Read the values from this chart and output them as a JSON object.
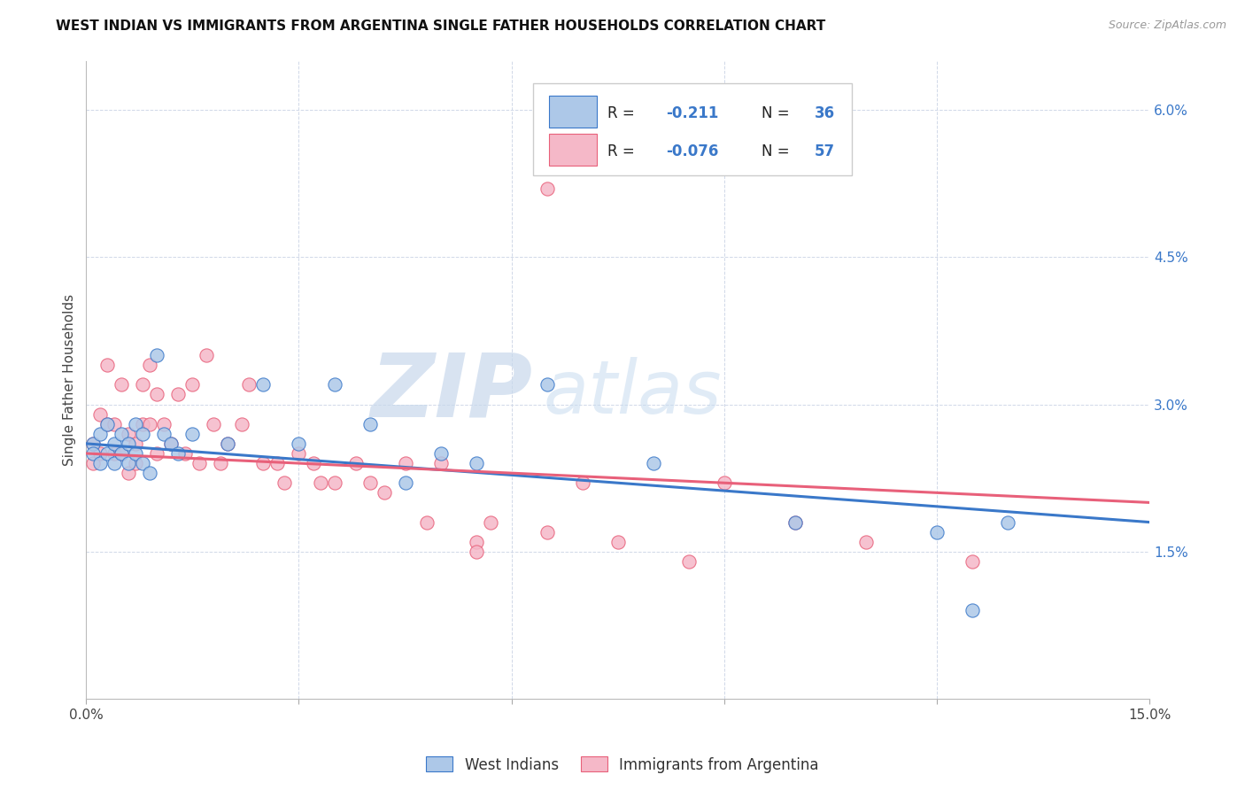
{
  "title": "WEST INDIAN VS IMMIGRANTS FROM ARGENTINA SINGLE FATHER HOUSEHOLDS CORRELATION CHART",
  "source": "Source: ZipAtlas.com",
  "ylabel": "Single Father Households",
  "xmin": 0.0,
  "xmax": 0.15,
  "ymin": 0.0,
  "ymax": 0.065,
  "yticks": [
    0.015,
    0.03,
    0.045,
    0.06
  ],
  "ytick_labels": [
    "1.5%",
    "3.0%",
    "4.5%",
    "6.0%"
  ],
  "xticks": [
    0.0,
    0.03,
    0.06,
    0.09,
    0.12,
    0.15
  ],
  "color_blue": "#adc8e8",
  "color_pink": "#f5b8c8",
  "line_color_blue": "#3a78c9",
  "line_color_pink": "#e8607a",
  "watermark_zip": "ZIP",
  "watermark_atlas": "atlas",
  "grid_color": "#d0d8e8",
  "west_indian_x": [
    0.001,
    0.001,
    0.002,
    0.002,
    0.003,
    0.003,
    0.004,
    0.004,
    0.005,
    0.005,
    0.006,
    0.006,
    0.007,
    0.007,
    0.008,
    0.008,
    0.009,
    0.01,
    0.011,
    0.012,
    0.013,
    0.015,
    0.02,
    0.025,
    0.03,
    0.035,
    0.04,
    0.045,
    0.05,
    0.055,
    0.065,
    0.08,
    0.1,
    0.12,
    0.125,
    0.13
  ],
  "west_indian_y": [
    0.026,
    0.025,
    0.027,
    0.024,
    0.028,
    0.025,
    0.026,
    0.024,
    0.027,
    0.025,
    0.026,
    0.024,
    0.028,
    0.025,
    0.027,
    0.024,
    0.023,
    0.035,
    0.027,
    0.026,
    0.025,
    0.027,
    0.026,
    0.032,
    0.026,
    0.032,
    0.028,
    0.022,
    0.025,
    0.024,
    0.032,
    0.024,
    0.018,
    0.017,
    0.009,
    0.018
  ],
  "argentina_x": [
    0.001,
    0.001,
    0.002,
    0.002,
    0.003,
    0.003,
    0.004,
    0.004,
    0.005,
    0.005,
    0.006,
    0.006,
    0.007,
    0.007,
    0.008,
    0.008,
    0.009,
    0.009,
    0.01,
    0.01,
    0.011,
    0.012,
    0.013,
    0.014,
    0.015,
    0.016,
    0.017,
    0.018,
    0.019,
    0.02,
    0.022,
    0.023,
    0.025,
    0.027,
    0.028,
    0.03,
    0.032,
    0.033,
    0.035,
    0.038,
    0.04,
    0.042,
    0.045,
    0.048,
    0.05,
    0.055,
    0.057,
    0.065,
    0.055,
    0.065,
    0.07,
    0.075,
    0.085,
    0.09,
    0.1,
    0.11,
    0.125
  ],
  "argentina_y": [
    0.026,
    0.024,
    0.029,
    0.025,
    0.034,
    0.028,
    0.028,
    0.025,
    0.032,
    0.025,
    0.027,
    0.023,
    0.026,
    0.024,
    0.032,
    0.028,
    0.034,
    0.028,
    0.031,
    0.025,
    0.028,
    0.026,
    0.031,
    0.025,
    0.032,
    0.024,
    0.035,
    0.028,
    0.024,
    0.026,
    0.028,
    0.032,
    0.024,
    0.024,
    0.022,
    0.025,
    0.024,
    0.022,
    0.022,
    0.024,
    0.022,
    0.021,
    0.024,
    0.018,
    0.024,
    0.016,
    0.018,
    0.052,
    0.015,
    0.017,
    0.022,
    0.016,
    0.014,
    0.022,
    0.018,
    0.016,
    0.014
  ],
  "wi_trend_x0": 0.0,
  "wi_trend_y0": 0.026,
  "wi_trend_x1": 0.15,
  "wi_trend_y1": 0.018,
  "arg_trend_x0": 0.0,
  "arg_trend_y0": 0.025,
  "arg_trend_x1": 0.15,
  "arg_trend_y1": 0.02
}
